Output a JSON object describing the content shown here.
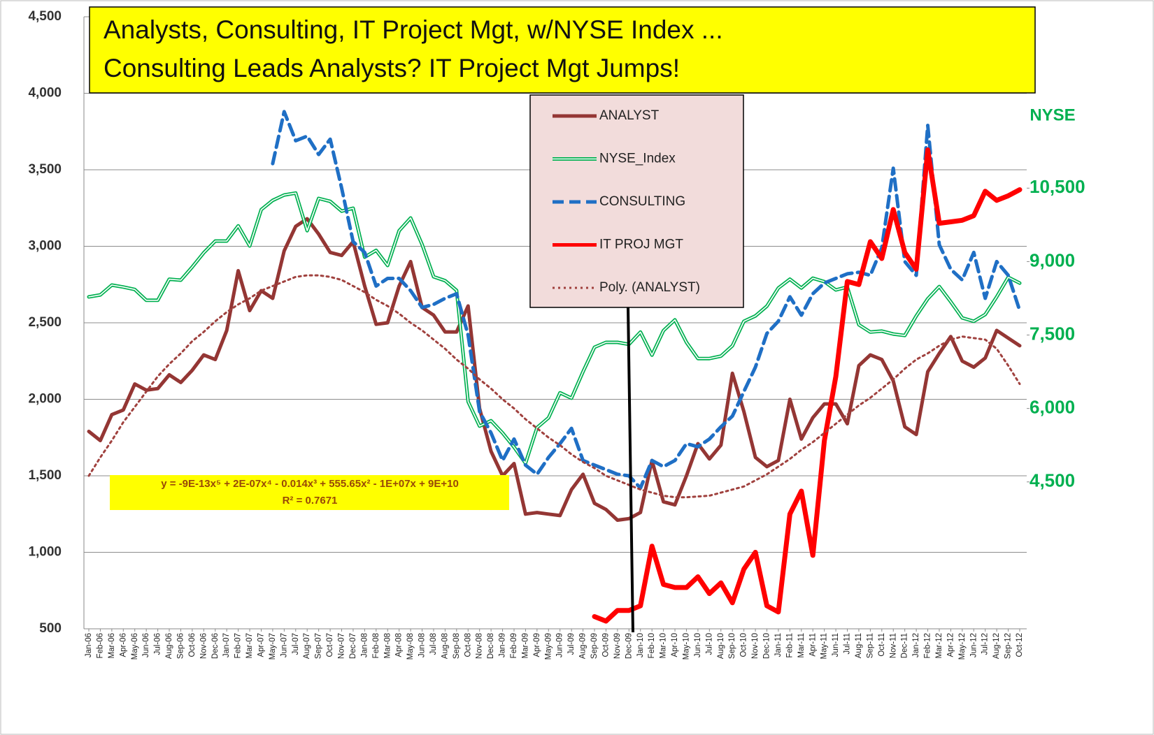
{
  "chart_data": {
    "type": "line",
    "title": [
      "Analysts, Consulting, IT Project Mgt, w/NYSE Index ...",
      "Consulting  Leads Analysts?  IT Project Mgt Jumps!"
    ],
    "y2_title": "NYSE",
    "annotation": [
      "y = -9E-13x⁵ + 2E-07x⁴ - 0.014x³ + 555.65x² - 1E+07x + 9E+10",
      "R² = 0.7671"
    ],
    "categories": [
      "Jan-06",
      "Feb-06",
      "Mar-06",
      "Apr-06",
      "May-06",
      "Jun-06",
      "Jul-06",
      "Aug-06",
      "Sep-06",
      "Oct-06",
      "Nov-06",
      "Dec-06",
      "Jan-07",
      "Feb-07",
      "Mar-07",
      "Apr-07",
      "May-07",
      "Jun-07",
      "Jul-07",
      "Aug-07",
      "Sep-07",
      "Oct-07",
      "Nov-07",
      "Dec-07",
      "Jan-08",
      "Feb-08",
      "Mar-08",
      "Apr-08",
      "May-08",
      "Jun-08",
      "Jul-08",
      "Aug-08",
      "Sep-08",
      "Oct-08",
      "Nov-08",
      "Dec-08",
      "Jan-09",
      "Feb-09",
      "Mar-09",
      "Apr-09",
      "May-09",
      "Jun-09",
      "Jul-09",
      "Aug-09",
      "Sep-09",
      "Oct-09",
      "Nov-09",
      "Dec-09",
      "Jan-10",
      "Feb-10",
      "Mar-10",
      "Apr-10",
      "May-10",
      "Jun-10",
      "Jul-10",
      "Aug-10",
      "Sep-10",
      "Oct-10",
      "Nov-10",
      "Dec-10",
      "Jan-11",
      "Feb-11",
      "Mar-11",
      "Apr-11",
      "May-11",
      "Jun-11",
      "Jul-11",
      "Aug-11",
      "Sep-11",
      "Oct-11",
      "Nov-11",
      "Dec-11",
      "Jan-12",
      "Feb-12",
      "Mar-12",
      "Apr-12",
      "May-12",
      "Jun-12",
      "Jul-12",
      "Aug-12",
      "Sep-12",
      "Oct-12"
    ],
    "ylim": [
      500,
      4500
    ],
    "yticks": [
      500,
      {
        "value": 1000,
        "label": "1,000"
      },
      {
        "value": 1500,
        "label": "1,500"
      },
      {
        "value": 2000,
        "label": "2,000"
      },
      {
        "value": 2500,
        "label": "2,500"
      },
      {
        "value": 3000,
        "label": "3,000"
      },
      {
        "value": 3500,
        "label": "3,500"
      },
      {
        "value": 4000,
        "label": "4,000"
      },
      {
        "value": 4500,
        "label": "4,500"
      }
    ],
    "y2lim": [
      1500,
      14000
    ],
    "y2ticks": [
      {
        "value": 4500,
        "label": "4,500"
      },
      {
        "value": 6000,
        "label": "6,000"
      },
      {
        "value": 7500,
        "label": "7,500"
      },
      {
        "value": 9000,
        "label": "9,000"
      },
      {
        "value": 10500,
        "label": "10,500"
      }
    ],
    "grid": true,
    "series": [
      {
        "name": "ANALYST",
        "color": "#943634",
        "line_style": "solid",
        "values": [
          1790,
          1730,
          1900,
          1930,
          2100,
          2060,
          2070,
          2160,
          2110,
          2190,
          2290,
          2260,
          2450,
          2840,
          2580,
          2710,
          2660,
          2970,
          3130,
          3180,
          3080,
          2960,
          2940,
          3030,
          2740,
          2490,
          2500,
          2740,
          2900,
          2600,
          2550,
          2440,
          2440,
          2610,
          1940,
          1660,
          1500,
          1580,
          1250,
          1260,
          1250,
          1240,
          1410,
          1510,
          1320,
          1280,
          1210,
          1220,
          1260,
          1600,
          1330,
          1310,
          1500,
          1710,
          1610,
          1700,
          2170,
          1920,
          1620,
          1560,
          1600,
          2000,
          1740,
          1880,
          1970,
          1970,
          1840,
          2220,
          2290,
          2260,
          2120,
          1820,
          1770,
          2180,
          2300,
          2410,
          2250,
          2210,
          2270,
          2450,
          2400,
          2350
        ]
      },
      {
        "name": "NYSE_Index",
        "color": "#00b050",
        "line_style": "double",
        "axis": "y2",
        "values": [
          8280,
          8320,
          8520,
          8480,
          8430,
          8210,
          8210,
          8640,
          8620,
          8890,
          9180,
          9420,
          9420,
          9730,
          9320,
          10060,
          10250,
          10360,
          10400,
          9630,
          10290,
          10230,
          10030,
          10090,
          9090,
          9230,
          8920,
          9630,
          9890,
          9350,
          8690,
          8610,
          8410,
          6140,
          5640,
          5750,
          5500,
          5210,
          4880,
          5610,
          5810,
          6320,
          6210,
          6750,
          7250,
          7350,
          7350,
          7310,
          7560,
          7090,
          7590,
          7810,
          7350,
          7020,
          7020,
          7070,
          7280,
          7780,
          7890,
          8090,
          8460,
          8640,
          8460,
          8660,
          8590,
          8420,
          8480,
          7710,
          7560,
          7580,
          7520,
          7490,
          7890,
          8240,
          8490,
          8180,
          7850,
          7780,
          7920,
          8280,
          8680,
          8560
        ]
      },
      {
        "name": "CONSULTING",
        "color": "#1f6fc5",
        "line_style": "dash",
        "values": [
          null,
          null,
          null,
          null,
          null,
          null,
          null,
          null,
          null,
          null,
          null,
          null,
          null,
          null,
          null,
          null,
          3540,
          3880,
          3690,
          3720,
          3600,
          3700,
          3380,
          3030,
          2960,
          2740,
          2790,
          2790,
          2710,
          2600,
          2620,
          2660,
          2690,
          2420,
          1920,
          1780,
          1600,
          1740,
          1570,
          1510,
          1620,
          1710,
          1810,
          1600,
          1570,
          1540,
          1510,
          1500,
          1420,
          1600,
          1560,
          1600,
          1710,
          1690,
          1740,
          1820,
          1890,
          2050,
          2210,
          2430,
          2510,
          2670,
          2550,
          2690,
          2760,
          2790,
          2820,
          2830,
          2810,
          2990,
          3510,
          2900,
          2810,
          3790,
          3010,
          2850,
          2780,
          2960,
          2660,
          2900,
          2810,
          2580
        ]
      },
      {
        "name": "IT PROJ MGT",
        "color": "#ff0000",
        "line_style": "solid",
        "values": [
          null,
          null,
          null,
          null,
          null,
          null,
          null,
          null,
          null,
          null,
          null,
          null,
          null,
          null,
          null,
          null,
          null,
          null,
          null,
          null,
          null,
          null,
          null,
          null,
          null,
          null,
          null,
          null,
          null,
          null,
          null,
          null,
          null,
          null,
          null,
          null,
          null,
          null,
          null,
          null,
          null,
          null,
          null,
          null,
          580,
          550,
          620,
          620,
          650,
          1040,
          790,
          770,
          770,
          840,
          730,
          800,
          670,
          890,
          1000,
          650,
          610,
          1250,
          1400,
          980,
          1730,
          2150,
          2770,
          2750,
          3030,
          2920,
          3240,
          2960,
          2850,
          3630,
          3150,
          3160,
          3170,
          3200,
          3360,
          3300,
          3330,
          3370
        ]
      },
      {
        "name": "Poly. (ANALYST)",
        "color": "#a0413e",
        "line_style": "dot",
        "values": [
          1500,
          1620,
          1730,
          1850,
          1950,
          2050,
          2150,
          2230,
          2300,
          2380,
          2440,
          2510,
          2570,
          2620,
          2660,
          2710,
          2740,
          2770,
          2800,
          2810,
          2810,
          2800,
          2780,
          2740,
          2700,
          2650,
          2610,
          2560,
          2500,
          2450,
          2390,
          2330,
          2260,
          2200,
          2130,
          2070,
          2000,
          1940,
          1870,
          1810,
          1750,
          1700,
          1640,
          1590,
          1550,
          1500,
          1470,
          1440,
          1410,
          1390,
          1370,
          1360,
          1360,
          1365,
          1370,
          1390,
          1410,
          1430,
          1470,
          1510,
          1560,
          1610,
          1670,
          1720,
          1780,
          1840,
          1900,
          1960,
          2010,
          2070,
          2130,
          2200,
          2260,
          2300,
          2350,
          2390,
          2410,
          2400,
          2390,
          2330,
          2220,
          2100
        ]
      }
    ]
  }
}
